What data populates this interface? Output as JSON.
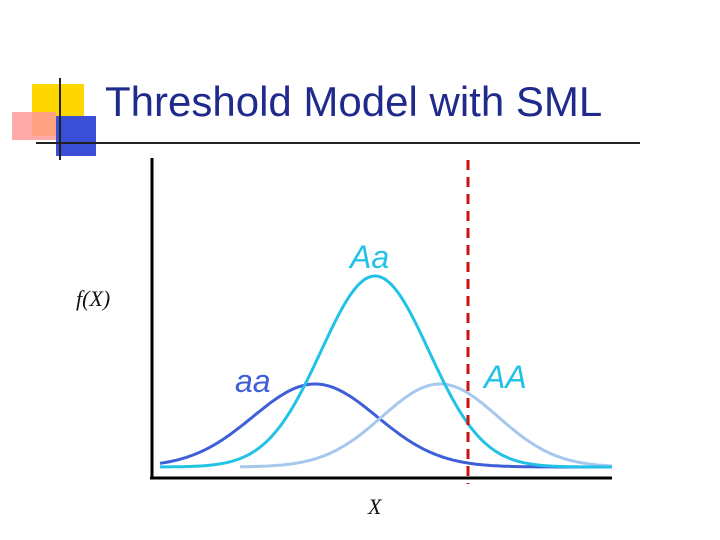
{
  "slide": {
    "title": "Threshold Model with SML"
  },
  "colors": {
    "title": "#1f2a8c",
    "accent_yellow": "#ffd700",
    "accent_red": "#ff8080",
    "accent_blue": "#3a4fd6",
    "curve_Aa": "#22c2e6",
    "curve_aa": "#3f5fd8",
    "curve_AA": "#a6c8ec",
    "threshold": "#cc1111",
    "axis": "#000000"
  },
  "diagram": {
    "y_axis_label": "f(X)",
    "x_axis_label": "X",
    "curves": [
      {
        "name": "Aa",
        "label": "Aa"
      },
      {
        "name": "aa",
        "label": "aa"
      },
      {
        "name": "AA",
        "label": "AA"
      }
    ],
    "threshold_line": "dashed"
  }
}
